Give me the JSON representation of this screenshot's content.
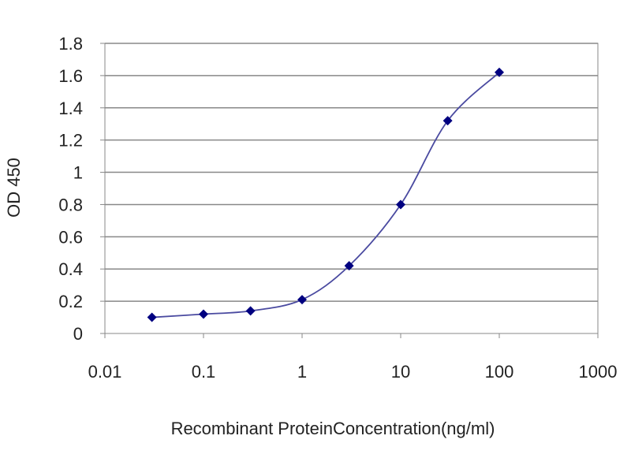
{
  "chart_data": {
    "type": "line",
    "title": "",
    "xlabel": "Recombinant ProteinConcentration(ng/ml)",
    "ylabel": "OD 450",
    "x_scale": "log",
    "xlim": [
      0.01,
      1000
    ],
    "ylim": [
      0,
      1.8
    ],
    "x_ticks": [
      "0.01",
      "0.1",
      "1",
      "10",
      "100",
      "1000"
    ],
    "y_ticks": [
      "0",
      "0.2",
      "0.4",
      "0.6",
      "0.8",
      "1",
      "1.2",
      "1.4",
      "1.6",
      "1.8"
    ],
    "grid": "horizontal",
    "legend": "none",
    "series": [
      {
        "color": "#000080",
        "line_color": "#4a4aa0",
        "x": [
          0.03,
          0.1,
          0.3,
          1,
          3,
          10,
          30,
          100
        ],
        "y": [
          0.1,
          0.12,
          0.14,
          0.21,
          0.42,
          0.8,
          1.32,
          1.62
        ]
      }
    ]
  }
}
